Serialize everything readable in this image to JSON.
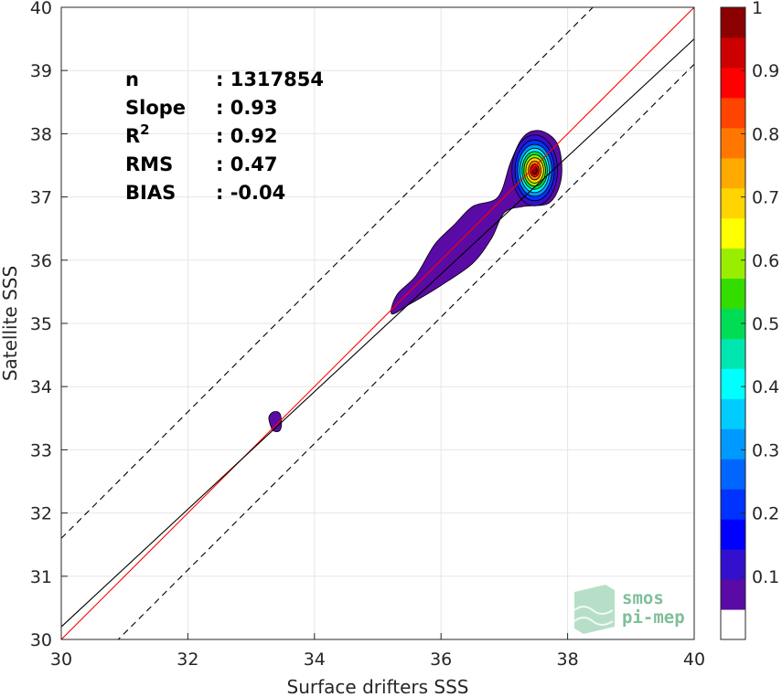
{
  "chart_data": {
    "type": "heatmap",
    "subtype": "density-contour scatter comparison",
    "xlabel": "Surface drifters SSS",
    "ylabel": "Satellite SSS",
    "xlim": [
      30,
      40
    ],
    "ylim": [
      30,
      40
    ],
    "xticks": [
      "30",
      "32",
      "34",
      "36",
      "38",
      "40"
    ],
    "yticks": [
      "30",
      "31",
      "32",
      "33",
      "34",
      "35",
      "36",
      "37",
      "38",
      "39",
      "40"
    ],
    "grid": true,
    "stats": [
      {
        "label": "n",
        "value": ": 1317854"
      },
      {
        "label": "Slope",
        "value": ": 0.93"
      },
      {
        "label": "R",
        "sup": "2",
        "value": ": 0.92"
      },
      {
        "label": "RMS",
        "value": ": 0.47"
      },
      {
        "label": "BIAS",
        "value": ": -0.04"
      }
    ],
    "lines": [
      {
        "name": "identity",
        "color": "#ff0000",
        "style": "solid",
        "slope": 1,
        "intercept": 0
      },
      {
        "name": "regression",
        "color": "#000000",
        "style": "solid",
        "slope": 0.93,
        "intercept": 2.3
      },
      {
        "name": "upper-bound",
        "color": "#000000",
        "style": "dashed",
        "slope": 1,
        "intercept": 1.6
      },
      {
        "name": "lower-bound",
        "color": "#000000",
        "style": "dashed",
        "slope": 1,
        "intercept": -0.9
      }
    ],
    "density_regions": [
      {
        "name": "main-ridge",
        "level": 0.05,
        "points": [
          [
            35.22,
            35.15
          ],
          [
            35.5,
            35.3
          ],
          [
            36.0,
            35.6
          ],
          [
            36.5,
            35.95
          ],
          [
            36.8,
            36.35
          ],
          [
            37.0,
            36.75
          ],
          [
            37.3,
            36.85
          ],
          [
            37.7,
            36.9
          ],
          [
            37.88,
            37.2
          ],
          [
            37.9,
            37.6
          ],
          [
            37.8,
            37.9
          ],
          [
            37.55,
            38.05
          ],
          [
            37.3,
            37.95
          ],
          [
            37.1,
            37.55
          ],
          [
            36.9,
            37.0
          ],
          [
            36.5,
            36.85
          ],
          [
            36.2,
            36.55
          ],
          [
            35.9,
            36.25
          ],
          [
            35.6,
            35.75
          ],
          [
            35.3,
            35.45
          ]
        ]
      },
      {
        "name": "isolated-blob",
        "level": 0.05,
        "points": [
          [
            33.3,
            33.4
          ],
          [
            33.35,
            33.3
          ],
          [
            33.45,
            33.3
          ],
          [
            33.48,
            33.42
          ],
          [
            33.45,
            33.58
          ],
          [
            33.35,
            33.6
          ],
          [
            33.28,
            33.52
          ]
        ]
      }
    ],
    "peak": {
      "x": 37.48,
      "y": 37.42,
      "max_level": 1.0
    },
    "peak_rings": [
      {
        "level": 0.1,
        "rx": 0.36,
        "ry": 0.56
      },
      {
        "level": 0.2,
        "rx": 0.31,
        "ry": 0.48
      },
      {
        "level": 0.3,
        "rx": 0.27,
        "ry": 0.41
      },
      {
        "level": 0.4,
        "rx": 0.23,
        "ry": 0.35
      },
      {
        "level": 0.5,
        "rx": 0.2,
        "ry": 0.3
      },
      {
        "level": 0.6,
        "rx": 0.17,
        "ry": 0.25
      },
      {
        "level": 0.7,
        "rx": 0.14,
        "ry": 0.2
      },
      {
        "level": 0.8,
        "rx": 0.1,
        "ry": 0.15
      },
      {
        "level": 0.9,
        "rx": 0.07,
        "ry": 0.1
      },
      {
        "level": 1.0,
        "rx": 0.04,
        "ry": 0.06
      }
    ],
    "colorbar": {
      "ticks": [
        "0.1",
        "0.2",
        "0.3",
        "0.4",
        "0.5",
        "0.6",
        "0.7",
        "0.8",
        "0.9",
        "1"
      ],
      "tick_values": [
        0.1,
        0.2,
        0.3,
        0.4,
        0.5,
        0.6,
        0.7,
        0.8,
        0.9,
        1.0
      ],
      "range": [
        0,
        1
      ],
      "colors": [
        "#ffffff",
        "#5a0aa5",
        "#3311cc",
        "#0000ff",
        "#0033ff",
        "#0066ff",
        "#0099ff",
        "#00ccff",
        "#00ffff",
        "#00e6b0",
        "#00dd55",
        "#33dd00",
        "#99ee00",
        "#ffff00",
        "#ffd400",
        "#ffaa00",
        "#ff7700",
        "#ff4400",
        "#ff0000",
        "#cc0000",
        "#8b0000"
      ]
    }
  },
  "watermark": {
    "line1": "smos",
    "line2": "pi-mep"
  }
}
